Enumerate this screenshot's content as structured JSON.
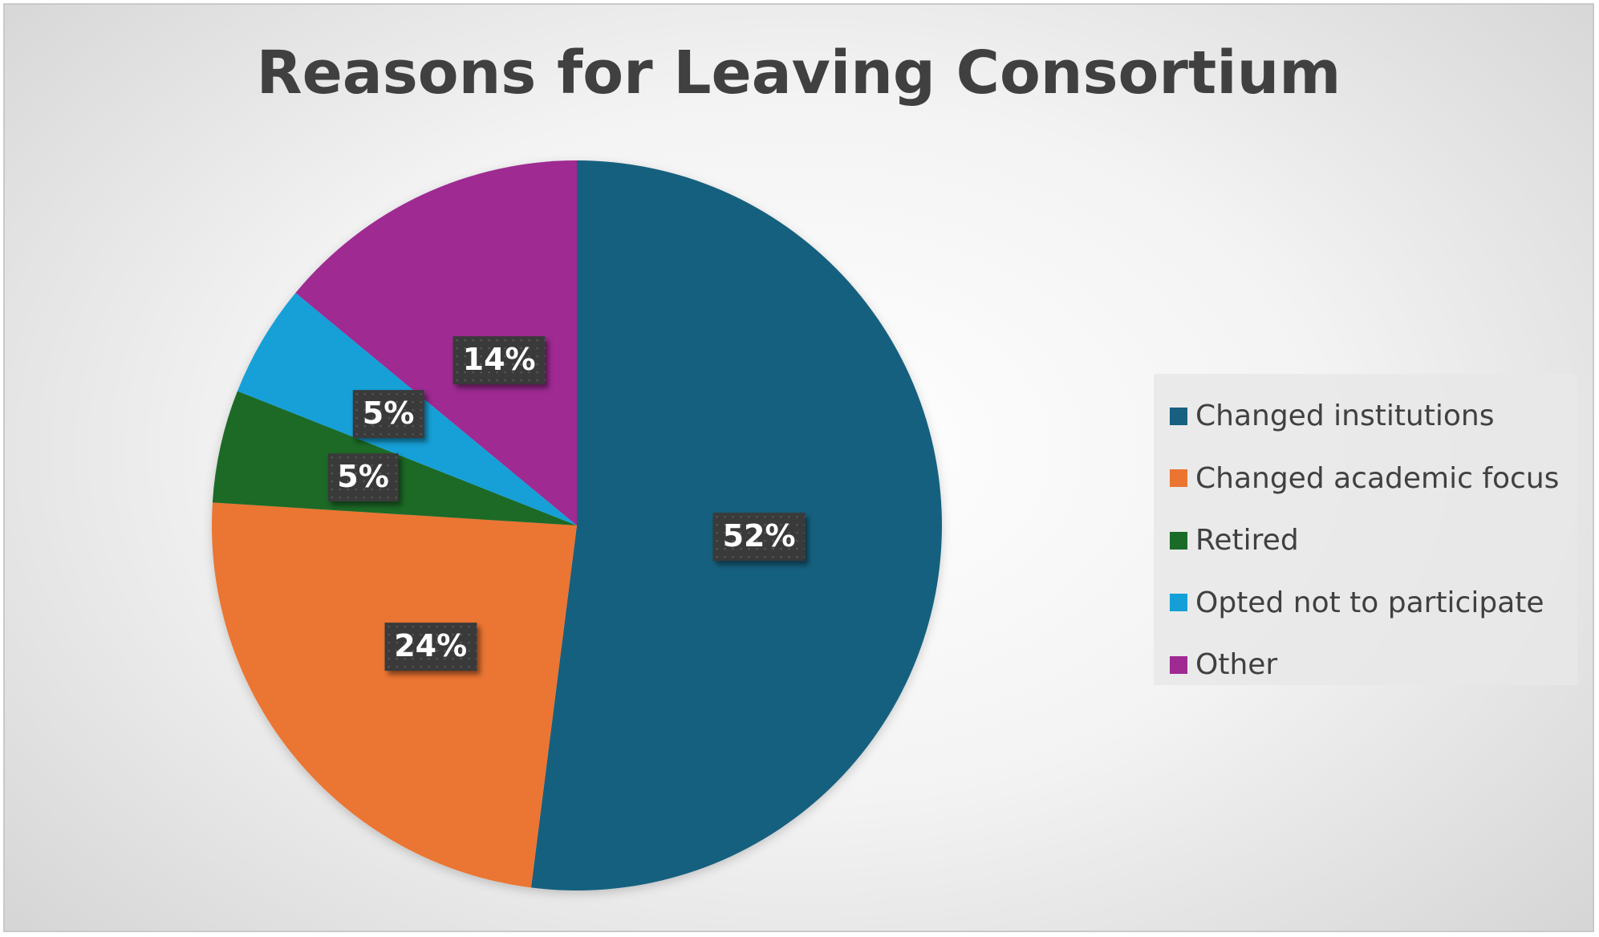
{
  "chart_data": {
    "type": "pie",
    "title": "Reasons for Leaving Consortium",
    "categories": [
      "Changed institutions",
      "Changed academic focus",
      "Retired",
      "Opted not to participate",
      "Other"
    ],
    "values": [
      52,
      24,
      5,
      5,
      14
    ],
    "labels": [
      "52%",
      "24%",
      "5%",
      "5%",
      "14%"
    ],
    "colors": [
      "#17607f",
      "#eb7431",
      "#1a6b28",
      "#14a0d7",
      "#9e2a92"
    ],
    "start_angle_deg": 0,
    "direction": "clockwise",
    "legend_position": "right"
  }
}
